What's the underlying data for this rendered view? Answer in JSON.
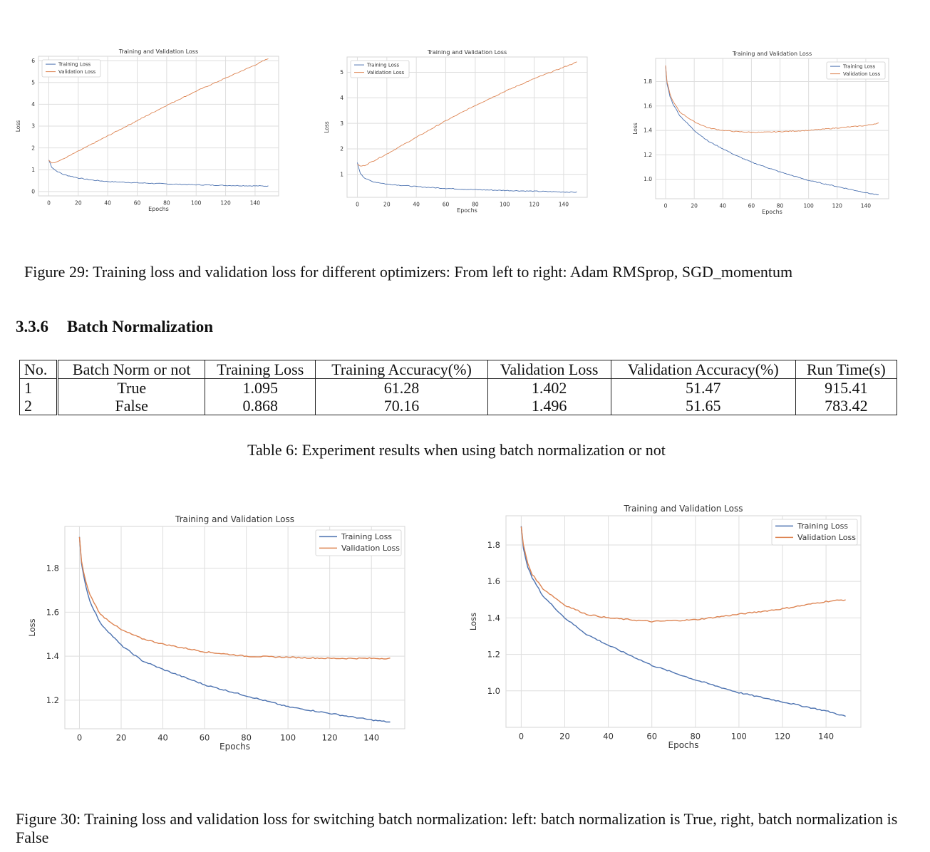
{
  "fig29": {
    "caption": "Figure 29: Training loss and validation loss for different optimizers: From left to right: Adam RMSprop, SGD_momentum"
  },
  "section": {
    "number": "3.3.6",
    "title": "Batch Normalization"
  },
  "table6": {
    "headers": [
      "No.",
      "Batch Norm or not",
      "Training Loss",
      "Training Accuracy(%)",
      "Validation Loss",
      "Validation Accuracy(%)",
      "Run Time(s)"
    ],
    "rows": [
      [
        "1",
        "True",
        "1.095",
        "61.28",
        "1.402",
        "51.47",
        "915.41"
      ],
      [
        "2",
        "False",
        "0.868",
        "70.16",
        "1.496",
        "51.65",
        "783.42"
      ]
    ],
    "caption": "Table 6: Experiment results when using batch normalization or not"
  },
  "fig30": {
    "caption": "Figure 30: Training loss and validation loss for switching batch normalization: left: batch normalization is True, right, batch normalization is False"
  },
  "chart_data": [
    {
      "type": "line",
      "title": "Training and Validation Loss",
      "xlabel": "Epochs",
      "ylabel": "Loss",
      "xlim": [
        -7,
        156
      ],
      "ylim": [
        -0.2,
        6.2
      ],
      "xticks": [
        0,
        20,
        40,
        60,
        80,
        100,
        120,
        140
      ],
      "yticks": [
        0,
        1,
        2,
        3,
        4,
        5,
        6
      ],
      "legend": "top-left",
      "grid": true,
      "series": [
        {
          "name": "Training Loss",
          "color": "#4c72b0",
          "x": [
            0,
            2,
            5,
            10,
            20,
            30,
            40,
            60,
            80,
            100,
            120,
            140,
            149
          ],
          "y": [
            1.45,
            1.12,
            0.95,
            0.78,
            0.62,
            0.52,
            0.46,
            0.4,
            0.35,
            0.31,
            0.28,
            0.26,
            0.25
          ]
        },
        {
          "name": "Validation Loss",
          "color": "#dd8452",
          "x": [
            0,
            2,
            5,
            10,
            20,
            40,
            60,
            80,
            100,
            120,
            140,
            149
          ],
          "y": [
            1.45,
            1.32,
            1.35,
            1.5,
            1.85,
            2.55,
            3.25,
            3.95,
            4.6,
            5.2,
            5.8,
            6.1
          ]
        }
      ]
    },
    {
      "type": "line",
      "title": "Training and Validation Loss",
      "xlabel": "Epochs",
      "ylabel": "Loss",
      "xlim": [
        -7,
        156
      ],
      "ylim": [
        0.1,
        5.6
      ],
      "xticks": [
        0,
        20,
        40,
        60,
        80,
        100,
        120,
        140
      ],
      "yticks": [
        1,
        2,
        3,
        4,
        5
      ],
      "legend": "top-left",
      "grid": true,
      "series": [
        {
          "name": "Training Loss",
          "color": "#4c72b0",
          "x": [
            0,
            2,
            5,
            10,
            20,
            40,
            60,
            80,
            100,
            120,
            140,
            149
          ],
          "y": [
            1.45,
            1.05,
            0.85,
            0.72,
            0.62,
            0.52,
            0.45,
            0.4,
            0.37,
            0.34,
            0.31,
            0.3
          ]
        },
        {
          "name": "Validation Loss",
          "color": "#dd8452",
          "x": [
            0,
            2,
            5,
            10,
            20,
            40,
            60,
            80,
            100,
            120,
            140,
            149
          ],
          "y": [
            1.4,
            1.32,
            1.35,
            1.5,
            1.8,
            2.45,
            3.1,
            3.7,
            4.25,
            4.75,
            5.2,
            5.4
          ]
        }
      ]
    },
    {
      "type": "line",
      "title": "Training and Validation Loss",
      "xlabel": "Epochs",
      "ylabel": "Loss",
      "xlim": [
        -7,
        156
      ],
      "ylim": [
        0.84,
        1.99
      ],
      "xticks": [
        0,
        20,
        40,
        60,
        80,
        100,
        120,
        140
      ],
      "yticks": [
        1.0,
        1.2,
        1.4,
        1.6,
        1.8
      ],
      "legend": "top-right",
      "grid": true,
      "series": [
        {
          "name": "Training Loss",
          "color": "#4c72b0",
          "x": [
            0,
            1,
            3,
            5,
            10,
            20,
            30,
            40,
            50,
            60,
            80,
            100,
            120,
            140,
            149
          ],
          "y": [
            1.93,
            1.78,
            1.68,
            1.62,
            1.52,
            1.4,
            1.31,
            1.25,
            1.19,
            1.14,
            1.06,
            0.99,
            0.94,
            0.89,
            0.87
          ]
        },
        {
          "name": "Validation Loss",
          "color": "#dd8452",
          "x": [
            0,
            1,
            3,
            5,
            10,
            20,
            30,
            40,
            50,
            60,
            70,
            80,
            100,
            120,
            140,
            149
          ],
          "y": [
            1.93,
            1.8,
            1.7,
            1.64,
            1.55,
            1.47,
            1.42,
            1.4,
            1.39,
            1.385,
            1.385,
            1.39,
            1.4,
            1.42,
            1.44,
            1.46
          ]
        }
      ]
    },
    {
      "type": "line",
      "title": "Training and Validation Loss",
      "xlabel": "Epochs",
      "ylabel": "Loss",
      "xlim": [
        -7,
        156
      ],
      "ylim": [
        1.07,
        1.99
      ],
      "xticks": [
        0,
        20,
        40,
        60,
        80,
        100,
        120,
        140
      ],
      "yticks": [
        1.2,
        1.4,
        1.6,
        1.8
      ],
      "legend": "top-right",
      "grid": true,
      "series": [
        {
          "name": "Training Loss",
          "color": "#4c72b0",
          "x": [
            0,
            1,
            3,
            5,
            10,
            20,
            30,
            40,
            60,
            80,
            100,
            120,
            140,
            149
          ],
          "y": [
            1.94,
            1.82,
            1.72,
            1.65,
            1.55,
            1.45,
            1.38,
            1.34,
            1.27,
            1.22,
            1.17,
            1.14,
            1.11,
            1.1
          ]
        },
        {
          "name": "Validation Loss",
          "color": "#dd8452",
          "x": [
            0,
            1,
            3,
            5,
            10,
            20,
            30,
            40,
            60,
            80,
            100,
            120,
            140,
            149
          ],
          "y": [
            1.94,
            1.83,
            1.74,
            1.68,
            1.59,
            1.52,
            1.48,
            1.455,
            1.42,
            1.4,
            1.395,
            1.39,
            1.39,
            1.39
          ]
        }
      ]
    },
    {
      "type": "line",
      "title": "Training and Validation Loss",
      "xlabel": "Epochs",
      "ylabel": "Loss",
      "xlim": [
        -7,
        156
      ],
      "ylim": [
        0.8,
        1.96
      ],
      "xticks": [
        0,
        20,
        40,
        60,
        80,
        100,
        120,
        140
      ],
      "yticks": [
        1.0,
        1.2,
        1.4,
        1.6,
        1.8
      ],
      "legend": "top-right",
      "grid": true,
      "series": [
        {
          "name": "Training Loss",
          "color": "#4c72b0",
          "x": [
            0,
            1,
            3,
            5,
            10,
            20,
            30,
            40,
            60,
            80,
            100,
            120,
            140,
            149
          ],
          "y": [
            1.9,
            1.78,
            1.68,
            1.62,
            1.52,
            1.4,
            1.31,
            1.25,
            1.14,
            1.06,
            0.99,
            0.94,
            0.89,
            0.86
          ]
        },
        {
          "name": "Validation Loss",
          "color": "#dd8452",
          "x": [
            0,
            1,
            3,
            5,
            10,
            20,
            30,
            40,
            60,
            80,
            100,
            120,
            140,
            149
          ],
          "y": [
            1.9,
            1.8,
            1.7,
            1.64,
            1.56,
            1.47,
            1.42,
            1.4,
            1.38,
            1.39,
            1.42,
            1.45,
            1.49,
            1.5
          ]
        }
      ]
    }
  ]
}
